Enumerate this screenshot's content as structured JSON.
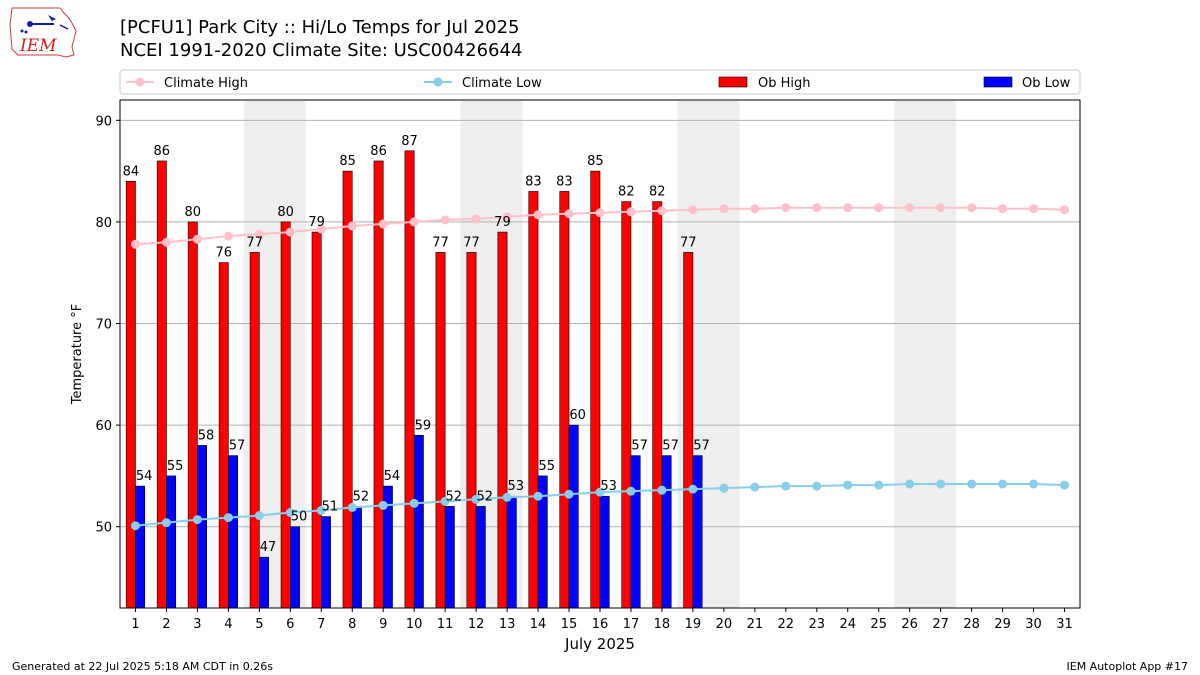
{
  "header": {
    "title_line1": "[PCFU1] Park City :: Hi/Lo Temps for Jul 2025",
    "title_line2": "NCEI 1991-2020 Climate Site: USC00426644",
    "logo_text": "IEM"
  },
  "footer": {
    "generated": "Generated at 22 Jul 2025 5:18 AM CDT in 0.26s",
    "app": "IEM Autoplot App #17"
  },
  "chart_data": {
    "type": "bar",
    "xlabel": "July 2025",
    "ylabel": "Temperature °F",
    "ylim": [
      42,
      92
    ],
    "yticks": [
      50,
      60,
      70,
      80,
      90
    ],
    "grid": true,
    "legend_position": "top",
    "days": [
      1,
      2,
      3,
      4,
      5,
      6,
      7,
      8,
      9,
      10,
      11,
      12,
      13,
      14,
      15,
      16,
      17,
      18,
      19,
      20,
      21,
      22,
      23,
      24,
      25,
      26,
      27,
      28,
      29,
      30,
      31
    ],
    "weekend_days": [
      5,
      6,
      12,
      13,
      19,
      20,
      26,
      27
    ],
    "series": [
      {
        "name": "Climate High",
        "kind": "line",
        "color": "#ffc0cb",
        "values": [
          77.8,
          78.0,
          78.3,
          78.6,
          78.8,
          79.0,
          79.3,
          79.6,
          79.8,
          80.0,
          80.2,
          80.3,
          80.5,
          80.7,
          80.8,
          80.9,
          81.0,
          81.1,
          81.2,
          81.3,
          81.3,
          81.4,
          81.4,
          81.4,
          81.4,
          81.4,
          81.4,
          81.4,
          81.3,
          81.3,
          81.2
        ]
      },
      {
        "name": "Climate Low",
        "kind": "line",
        "color": "#87ceeb",
        "values": [
          50.1,
          50.4,
          50.7,
          50.9,
          51.1,
          51.4,
          51.6,
          51.9,
          52.1,
          52.3,
          52.5,
          52.7,
          52.9,
          53.0,
          53.2,
          53.4,
          53.5,
          53.6,
          53.7,
          53.8,
          53.9,
          54.0,
          54.0,
          54.1,
          54.1,
          54.2,
          54.2,
          54.2,
          54.2,
          54.2,
          54.1
        ]
      },
      {
        "name": "Ob High",
        "kind": "bar",
        "color": "#ff0000",
        "values": [
          84,
          86,
          80,
          76,
          77,
          80,
          79,
          85,
          86,
          87,
          77,
          77,
          79,
          83,
          83,
          85,
          82,
          82,
          77
        ]
      },
      {
        "name": "Ob Low",
        "kind": "bar",
        "color": "#0000ff",
        "values": [
          54,
          55,
          58,
          57,
          47,
          50,
          51,
          52,
          54,
          59,
          52,
          52,
          53,
          55,
          60,
          53,
          57,
          57,
          57
        ]
      }
    ]
  }
}
